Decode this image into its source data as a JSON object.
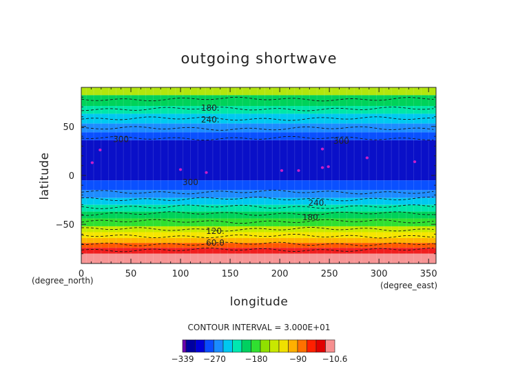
{
  "chart_data": {
    "type": "heatmap",
    "title": "outgoing shortwave",
    "xlabel": "longitude",
    "ylabel": "latitude",
    "x_unit_label": "(degree_east)",
    "y_unit_label": "(degree_north)",
    "xlim": [
      0,
      357.5
    ],
    "ylim": [
      -90,
      90
    ],
    "x_ticks": [
      "0",
      "50",
      "100",
      "150",
      "200",
      "250",
      "300",
      "350"
    ],
    "x_tick_values": [
      0,
      50,
      100,
      150,
      200,
      250,
      300,
      350
    ],
    "y_ticks": [
      "50",
      "0",
      "−50"
    ],
    "y_tick_values": [
      50,
      0,
      -50
    ],
    "contour_interval_text": "CONTOUR INTERVAL = 3.000E+01",
    "colorbar": {
      "tick_labels": [
        "−339",
        "−270",
        "−180",
        "−90",
        "−10.6"
      ],
      "tick_values": [
        -339,
        -270,
        -180,
        -90,
        -10.6
      ],
      "level_colors": [
        "#6b00b0",
        "#0000a0",
        "#0000d8",
        "#0a4cff",
        "#1a8cff",
        "#00c8f0",
        "#00e8b0",
        "#00d060",
        "#30e030",
        "#90e000",
        "#c8e800",
        "#f0e000",
        "#ffb000",
        "#ff7000",
        "#ff2000",
        "#e00000",
        "#f79090"
      ]
    },
    "latitude_bands": [
      {
        "lat_top": 90,
        "lat_bottom": 82,
        "color": "#b2e60d"
      },
      {
        "lat_top": 82,
        "lat_bottom": 71,
        "color": "#00d25a"
      },
      {
        "lat_top": 71,
        "lat_bottom": 63,
        "color": "#00e6a8"
      },
      {
        "lat_top": 63,
        "lat_bottom": 53,
        "color": "#00c9f0"
      },
      {
        "lat_top": 53,
        "lat_bottom": 44,
        "color": "#1e8cff"
      },
      {
        "lat_top": 44,
        "lat_bottom": 36,
        "color": "#0a50ff"
      },
      {
        "lat_top": 36,
        "lat_bottom": -5,
        "color": "#0a10c8"
      },
      {
        "lat_top": -5,
        "lat_bottom": -15,
        "color": "#0a50ff"
      },
      {
        "lat_top": -15,
        "lat_bottom": -23,
        "color": "#1e8cff"
      },
      {
        "lat_top": -23,
        "lat_bottom": -30,
        "color": "#00c9f0"
      },
      {
        "lat_top": -30,
        "lat_bottom": -37,
        "color": "#00e6a8"
      },
      {
        "lat_top": -37,
        "lat_bottom": -44,
        "color": "#00d25a"
      },
      {
        "lat_top": -44,
        "lat_bottom": -52,
        "color": "#30e030"
      },
      {
        "lat_top": -52,
        "lat_bottom": -58,
        "color": "#c8ea00"
      },
      {
        "lat_top": -58,
        "lat_bottom": -64,
        "color": "#f6e600"
      },
      {
        "lat_top": -64,
        "lat_bottom": -69,
        "color": "#ffb400"
      },
      {
        "lat_top": -69,
        "lat_bottom": -74,
        "color": "#ff5a00"
      },
      {
        "lat_top": -74,
        "lat_bottom": -80,
        "color": "#f01e1e"
      },
      {
        "lat_top": -80,
        "lat_bottom": -90,
        "color": "#f79595"
      }
    ],
    "contour_lines_lat": [
      78,
      68,
      58,
      48,
      38,
      -17,
      -24,
      -32,
      -39,
      -47,
      -55,
      -62,
      -70,
      -76
    ],
    "contour_labels": [
      {
        "text": "180.",
        "lon": 130,
        "lat": 69
      },
      {
        "text": "240.",
        "lon": 130,
        "lat": 57
      },
      {
        "text": "300",
        "lon": 40,
        "lat": 37
      },
      {
        "text": "300",
        "lon": 262,
        "lat": 35
      },
      {
        "text": "300",
        "lon": 110,
        "lat": -7
      },
      {
        "text": "240.",
        "lon": 238,
        "lat": -28
      },
      {
        "text": "180.",
        "lon": 232,
        "lat": -43
      },
      {
        "text": "120.",
        "lon": 135,
        "lat": -57
      },
      {
        "text": "60.0",
        "lon": 135,
        "lat": -69
      }
    ],
    "spots": [
      {
        "lon": 19,
        "lat": 26
      },
      {
        "lon": 11,
        "lat": 13
      },
      {
        "lon": 100,
        "lat": 6
      },
      {
        "lon": 243,
        "lat": 8
      },
      {
        "lon": 249,
        "lat": 9
      },
      {
        "lon": 219,
        "lat": 5
      },
      {
        "lon": 202,
        "lat": 5
      },
      {
        "lon": 243,
        "lat": 27
      },
      {
        "lon": 288,
        "lat": 18
      },
      {
        "lon": 336,
        "lat": 14
      },
      {
        "lon": 126,
        "lat": 3
      }
    ]
  }
}
